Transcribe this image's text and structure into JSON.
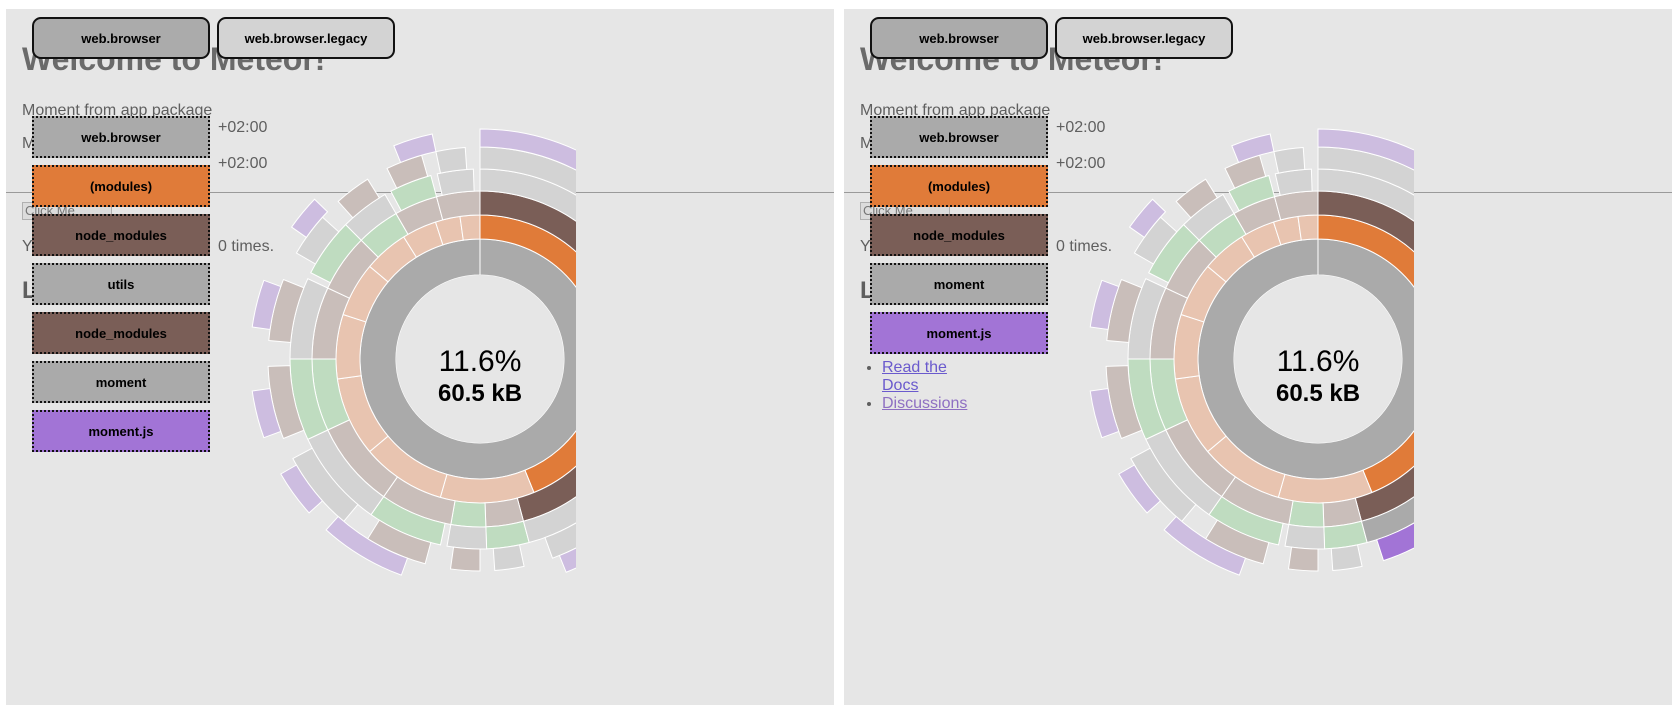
{
  "colors": {
    "panel_bg": "#e6e6e6",
    "root_gray": "#aaaaaa",
    "modules_orange": "#e07b39",
    "node_modules_brown": "#7a5e57",
    "moment_js_purple": "#a274d6",
    "light_gray": "#d3d3d3",
    "light_purple": "#cdbde0",
    "light_green": "#bfdcc0",
    "light_peach": "#e8c4b0",
    "light_brown": "#c9beba"
  },
  "app": {
    "title": "Welcome to Meteor!",
    "moment_line": "Moment from app package",
    "tz_line_1": "+02:00",
    "tz_line_2": "+02:00",
    "m_prefix": "M",
    "click_button": "Click Me",
    "y_prefix": "Y",
    "times_text": "0 times.",
    "learn_prefix": "L",
    "links": [
      "Read the Docs",
      "Discussions"
    ]
  },
  "panels": [
    {
      "tabs": [
        {
          "label": "web.browser",
          "active": true
        },
        {
          "label": "web.browser.legacy",
          "active": false
        }
      ],
      "breadcrumbs": [
        {
          "label": "web.browser",
          "color": "#aaaaaa"
        },
        {
          "label": "(modules)",
          "color": "#e07b39"
        },
        {
          "label": "node_modules",
          "color": "#7a5e57"
        },
        {
          "label": "utils",
          "color": "#aaaaaa"
        },
        {
          "label": "node_modules",
          "color": "#7a5e57"
        },
        {
          "label": "moment",
          "color": "#aaaaaa"
        },
        {
          "label": "moment.js",
          "color": "#a274d6"
        }
      ],
      "center": {
        "percent": "11.6%",
        "size": "60.5 kB"
      }
    },
    {
      "tabs": [
        {
          "label": "web.browser",
          "active": true
        },
        {
          "label": "web.browser.legacy",
          "active": false
        }
      ],
      "breadcrumbs": [
        {
          "label": "web.browser",
          "color": "#aaaaaa"
        },
        {
          "label": "(modules)",
          "color": "#e07b39"
        },
        {
          "label": "node_modules",
          "color": "#7a5e57"
        },
        {
          "label": "moment",
          "color": "#aaaaaa"
        },
        {
          "label": "moment.js",
          "color": "#a274d6"
        }
      ],
      "center": {
        "percent": "11.6%",
        "size": "60.5 kB"
      }
    }
  ]
}
